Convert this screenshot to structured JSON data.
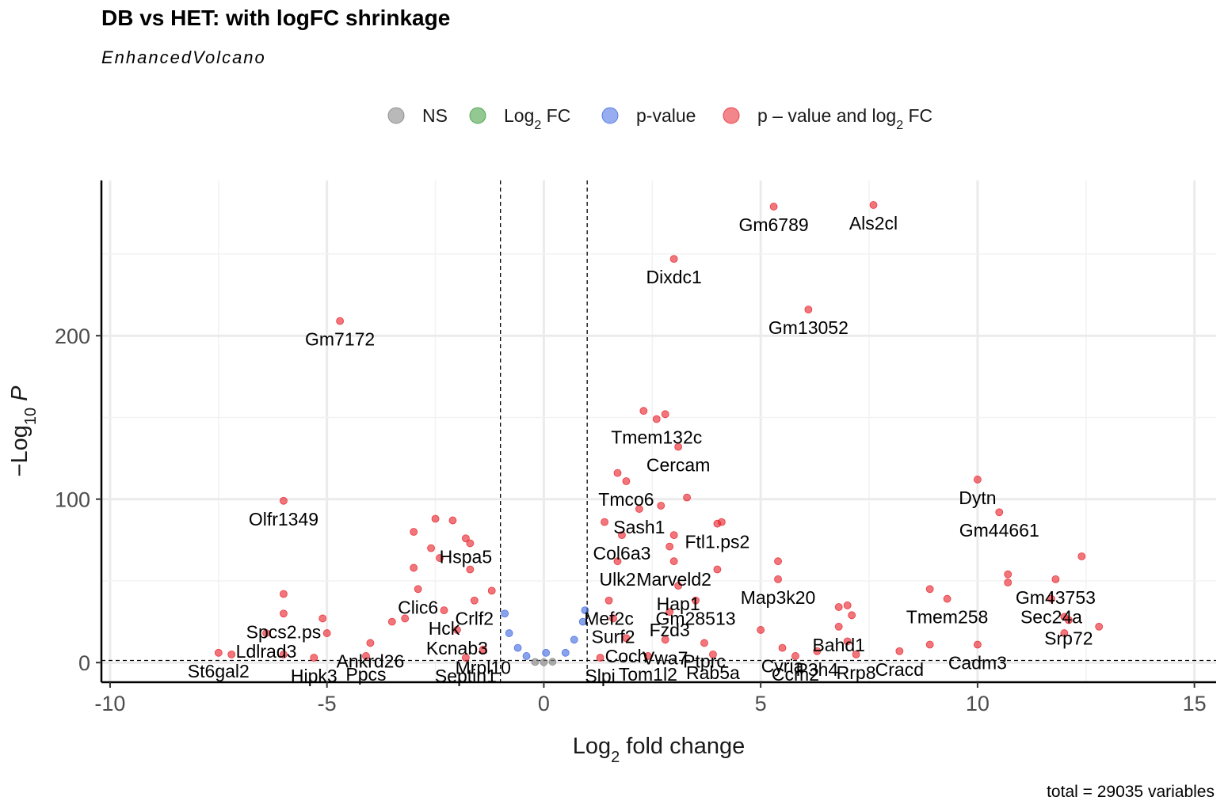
{
  "chart_data": {
    "type": "scatter",
    "title": "DB vs HET: with logFC shrinkage",
    "subtitle": "EnhancedVolcano",
    "caption": "total = 29035 variables",
    "xlabel_main": "Log",
    "xlabel_sub": "2",
    "xlabel_rest": " fold change",
    "ylabel_main": "−Log",
    "ylabel_sub": "10",
    "ylabel_rest": " P",
    "xlim": [
      -10.2,
      15.5
    ],
    "ylim": [
      -12,
      295
    ],
    "x_ticks": [
      -10,
      -5,
      0,
      5,
      10,
      15
    ],
    "x_tick_labels": [
      "-10",
      "-5",
      "0",
      "5",
      "10",
      "15"
    ],
    "y_ticks": [
      0,
      100,
      200
    ],
    "y_tick_labels": [
      "0",
      "100",
      "200"
    ],
    "grid": true,
    "fc_cutoff": 1,
    "p_cutoff_y": 1.3,
    "legend": {
      "placement": "top",
      "items": [
        {
          "key": "ns",
          "main": "NS",
          "sub": "",
          "rest": "",
          "color": "#808080"
        },
        {
          "key": "fc",
          "main": "Log",
          "sub": "2",
          "rest": " FC",
          "color": "#3a9a3a"
        },
        {
          "key": "p",
          "main": "p-value",
          "sub": "",
          "rest": "",
          "color": "#4169e1"
        },
        {
          "key": "both",
          "main": "p – value and log",
          "sub": "2",
          "rest": " FC",
          "color": "#e8222a"
        }
      ]
    },
    "colors": {
      "ns": "#808080",
      "fc": "#3a9a3a",
      "p": "#4169e1",
      "both": "#e8222a"
    },
    "series": [
      {
        "key": "both",
        "points": [
          {
            "x": 7.6,
            "y": 280,
            "label": "Als2cl"
          },
          {
            "x": 5.3,
            "y": 279,
            "label": "Gm6789"
          },
          {
            "x": 3.0,
            "y": 247,
            "label": "Dixdc1"
          },
          {
            "x": 6.1,
            "y": 216,
            "label": "Gm13052"
          },
          {
            "x": -4.7,
            "y": 209,
            "label": "Gm7172"
          },
          {
            "x": 2.3,
            "y": 154,
            "label": ""
          },
          {
            "x": 2.8,
            "y": 152,
            "label": ""
          },
          {
            "x": 2.6,
            "y": 149,
            "label": "Tmem132c"
          },
          {
            "x": 3.1,
            "y": 132,
            "label": "Cercam"
          },
          {
            "x": 1.7,
            "y": 116,
            "label": ""
          },
          {
            "x": 1.9,
            "y": 111,
            "label": "Tmco6"
          },
          {
            "x": 10.0,
            "y": 112,
            "label": "Dytn"
          },
          {
            "x": 10.5,
            "y": 92,
            "label": "Gm44661"
          },
          {
            "x": 3.3,
            "y": 101,
            "label": ""
          },
          {
            "x": -6.0,
            "y": 99,
            "label": "Olfr1349"
          },
          {
            "x": 2.2,
            "y": 94,
            "label": "Sash1"
          },
          {
            "x": 2.7,
            "y": 96,
            "label": ""
          },
          {
            "x": 4.0,
            "y": 85,
            "label": "Ftl1.ps2"
          },
          {
            "x": 4.1,
            "y": 86,
            "label": ""
          },
          {
            "x": 1.4,
            "y": 86,
            "label": ""
          },
          {
            "x": 1.8,
            "y": 78,
            "label": "Col6a3"
          },
          {
            "x": 3.0,
            "y": 78,
            "label": ""
          },
          {
            "x": 2.9,
            "y": 71,
            "label": ""
          },
          {
            "x": -2.5,
            "y": 88,
            "label": ""
          },
          {
            "x": -2.1,
            "y": 87,
            "label": ""
          },
          {
            "x": -3.0,
            "y": 80,
            "label": ""
          },
          {
            "x": -1.8,
            "y": 76,
            "label": "Hspa5"
          },
          {
            "x": -1.7,
            "y": 73,
            "label": ""
          },
          {
            "x": -2.6,
            "y": 70,
            "label": ""
          },
          {
            "x": -3.0,
            "y": 58,
            "label": ""
          },
          {
            "x": -2.4,
            "y": 64,
            "label": ""
          },
          {
            "x": -1.7,
            "y": 57,
            "label": ""
          },
          {
            "x": 1.7,
            "y": 62,
            "label": "Ulk2"
          },
          {
            "x": 3.0,
            "y": 62,
            "label": "Marveld2"
          },
          {
            "x": 5.4,
            "y": 62,
            "label": ""
          },
          {
            "x": 4.0,
            "y": 57,
            "label": ""
          },
          {
            "x": 5.4,
            "y": 51,
            "label": "Map3k20"
          },
          {
            "x": 3.1,
            "y": 47,
            "label": "Hap1"
          },
          {
            "x": -2.9,
            "y": 45,
            "label": "Clic6"
          },
          {
            "x": -1.2,
            "y": 44,
            "label": ""
          },
          {
            "x": -1.6,
            "y": 38,
            "label": "Crlf2"
          },
          {
            "x": 1.5,
            "y": 38,
            "label": "Mef2c"
          },
          {
            "x": 3.5,
            "y": 38,
            "label": "Gm28513"
          },
          {
            "x": 12.4,
            "y": 65,
            "label": ""
          },
          {
            "x": 10.7,
            "y": 54,
            "label": ""
          },
          {
            "x": 11.8,
            "y": 51,
            "label": "Gm43753"
          },
          {
            "x": 10.7,
            "y": 49,
            "label": ""
          },
          {
            "x": 11.7,
            "y": 39,
            "label": "Sec24a"
          },
          {
            "x": 8.9,
            "y": 45,
            "label": ""
          },
          {
            "x": 9.3,
            "y": 39,
            "label": "Tmem258"
          },
          {
            "x": 12.0,
            "y": 28,
            "label": ""
          },
          {
            "x": 12.1,
            "y": 26,
            "label": "Srp72"
          },
          {
            "x": 12.8,
            "y": 22,
            "label": ""
          },
          {
            "x": 12.0,
            "y": 18,
            "label": ""
          },
          {
            "x": -6.0,
            "y": 42,
            "label": ""
          },
          {
            "x": -6.0,
            "y": 30,
            "label": "Spcs2.ps"
          },
          {
            "x": -5.1,
            "y": 27,
            "label": ""
          },
          {
            "x": -2.3,
            "y": 32,
            "label": "Hck"
          },
          {
            "x": 2.9,
            "y": 31,
            "label": "Fzd3"
          },
          {
            "x": 6.8,
            "y": 34,
            "label": ""
          },
          {
            "x": 7.0,
            "y": 35,
            "label": ""
          },
          {
            "x": 6.8,
            "y": 22,
            "label": "Bahd1"
          },
          {
            "x": 7.1,
            "y": 29,
            "label": ""
          },
          {
            "x": 1.6,
            "y": 27,
            "label": "Surf2"
          },
          {
            "x": -2.0,
            "y": 20,
            "label": "Kcnab3"
          },
          {
            "x": -6.4,
            "y": 18,
            "label": "Ldlrad3"
          },
          {
            "x": -5.0,
            "y": 18,
            "label": ""
          },
          {
            "x": -6.0,
            "y": 5,
            "label": ""
          },
          {
            "x": -4.0,
            "y": 12,
            "label": "Ankrd26"
          },
          {
            "x": -3.5,
            "y": 25,
            "label": ""
          },
          {
            "x": -3.2,
            "y": 27,
            "label": ""
          },
          {
            "x": 1.9,
            "y": 15,
            "label": "Coch"
          },
          {
            "x": 2.8,
            "y": 14,
            "label": "Vwa7"
          },
          {
            "x": 3.7,
            "y": 12,
            "label": "Ptprc"
          },
          {
            "x": 5.0,
            "y": 20,
            "label": ""
          },
          {
            "x": 5.5,
            "y": 9,
            "label": "Cyria"
          },
          {
            "x": 6.3,
            "y": 7,
            "label": "P3h4"
          },
          {
            "x": 7.0,
            "y": 13,
            "label": ""
          },
          {
            "x": 8.9,
            "y": 11,
            "label": ""
          },
          {
            "x": 10.0,
            "y": 11,
            "label": "Cadm3"
          },
          {
            "x": -1.4,
            "y": 8,
            "label": "Mrpl10"
          },
          {
            "x": -7.5,
            "y": 6,
            "label": "St6gal2"
          },
          {
            "x": -7.2,
            "y": 5,
            "label": ""
          },
          {
            "x": -5.3,
            "y": 3,
            "label": "Hipk3"
          },
          {
            "x": -4.1,
            "y": 4,
            "label": "Ppcs"
          },
          {
            "x": -1.8,
            "y": 3,
            "label": "Septin1"
          },
          {
            "x": 1.3,
            "y": 3,
            "label": "Slpi"
          },
          {
            "x": 2.4,
            "y": 4,
            "label": "Tom1l2"
          },
          {
            "x": 3.9,
            "y": 5,
            "label": "Rab5a"
          },
          {
            "x": 5.8,
            "y": 4,
            "label": "Ccm2"
          },
          {
            "x": 7.2,
            "y": 5,
            "label": "Rrp8"
          },
          {
            "x": 8.2,
            "y": 7,
            "label": "Cracd"
          }
        ]
      },
      {
        "key": "p",
        "points": [
          {
            "x": -0.9,
            "y": 30
          },
          {
            "x": -0.8,
            "y": 18
          },
          {
            "x": -0.6,
            "y": 9
          },
          {
            "x": -0.4,
            "y": 4
          },
          {
            "x": 0.05,
            "y": 6
          },
          {
            "x": 0.5,
            "y": 6
          },
          {
            "x": 0.7,
            "y": 14
          },
          {
            "x": 0.9,
            "y": 25
          },
          {
            "x": 0.95,
            "y": 32
          }
        ]
      },
      {
        "key": "ns",
        "points": [
          {
            "x": -0.2,
            "y": 0.4
          },
          {
            "x": 0.0,
            "y": 0.2
          },
          {
            "x": 0.2,
            "y": 0.5
          }
        ]
      }
    ]
  }
}
